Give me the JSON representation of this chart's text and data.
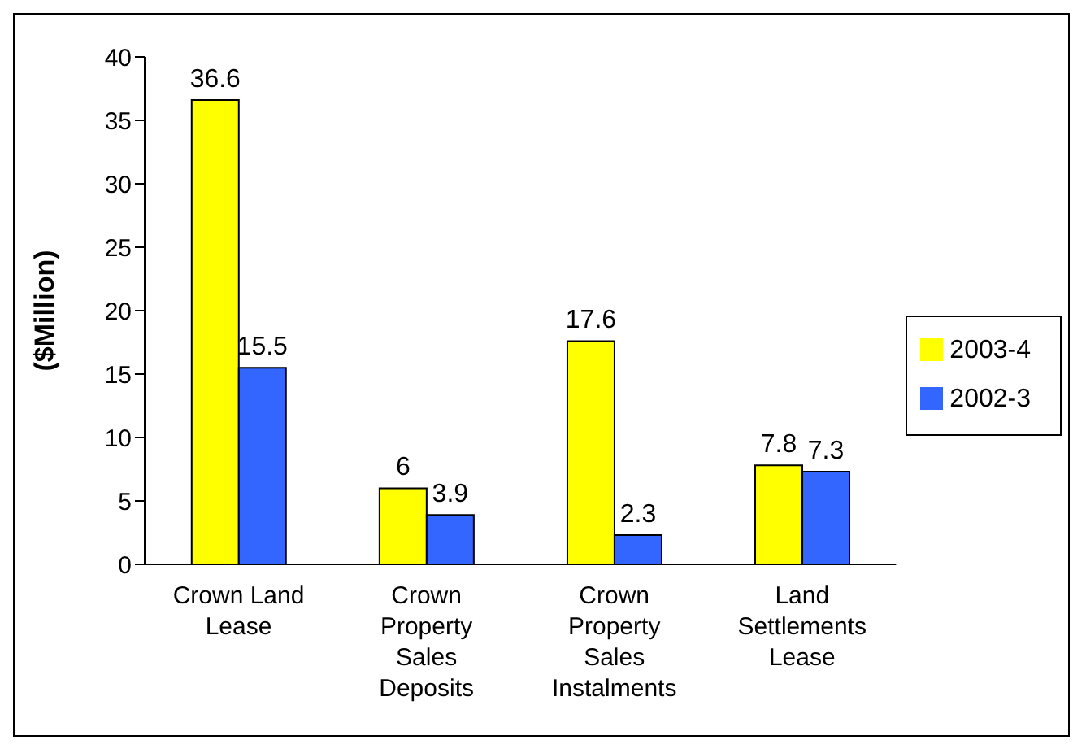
{
  "chart_data": {
    "type": "bar",
    "ylabel": "($Million)",
    "categories": [
      "Crown Land Lease",
      "Crown Property Sales Deposits",
      "Crown Property Sales Instalments",
      "Land Settlements Lease"
    ],
    "series": [
      {
        "name": "2003-4",
        "color": "#ffff00",
        "values": [
          36.6,
          6,
          17.6,
          7.8
        ]
      },
      {
        "name": "2002-3",
        "color": "#3366ff",
        "values": [
          15.5,
          3.9,
          2.3,
          7.3
        ]
      }
    ],
    "ylim": [
      0,
      40
    ],
    "yticks": [
      0,
      5,
      10,
      15,
      20,
      25,
      30,
      35,
      40
    ],
    "grid": false,
    "legend": "right",
    "data_labels": true
  }
}
